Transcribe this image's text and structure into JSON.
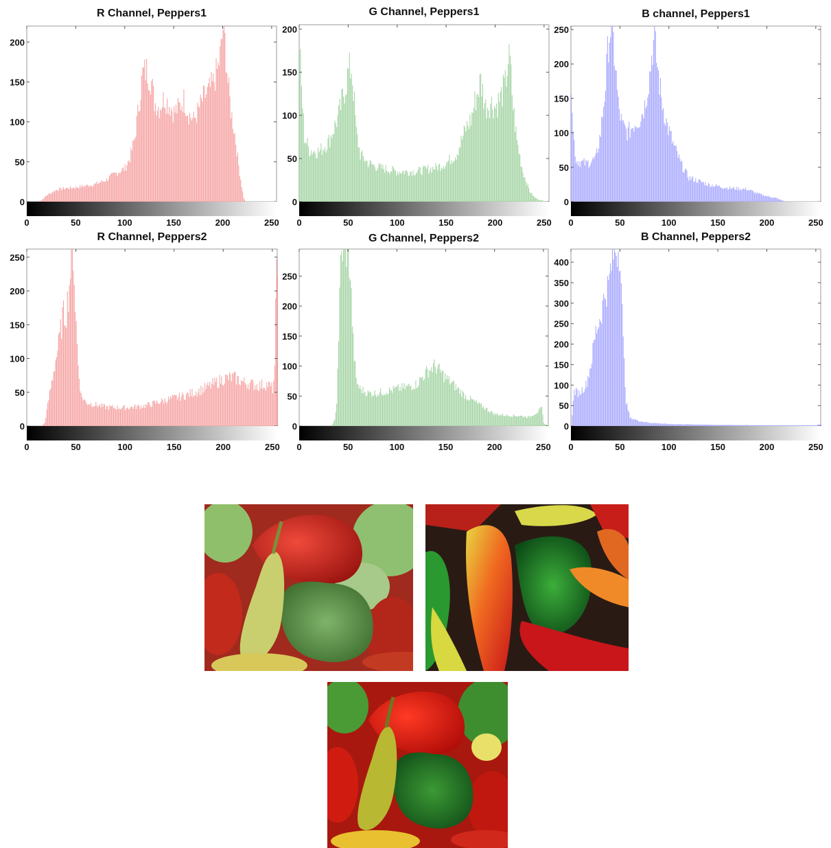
{
  "chart_data": [
    {
      "type": "bar",
      "title": "R Channel, Peppers1",
      "xlabel": "",
      "ylabel": "",
      "xlim": [
        0,
        255
      ],
      "ylim": [
        0,
        220
      ],
      "xticks": [
        0,
        50,
        100,
        150,
        200,
        250
      ],
      "yticks": [
        0,
        50,
        100,
        150,
        200
      ],
      "grid": false,
      "legend": "none",
      "color": "#f6a3a3",
      "profile": [
        [
          0,
          0
        ],
        [
          10,
          0
        ],
        [
          15,
          2
        ],
        [
          20,
          8
        ],
        [
          30,
          15
        ],
        [
          40,
          17
        ],
        [
          50,
          18
        ],
        [
          60,
          20
        ],
        [
          70,
          22
        ],
        [
          80,
          27
        ],
        [
          90,
          35
        ],
        [
          100,
          42
        ],
        [
          105,
          55
        ],
        [
          110,
          80
        ],
        [
          115,
          130
        ],
        [
          118,
          160
        ],
        [
          122,
          165
        ],
        [
          127,
          150
        ],
        [
          130,
          125
        ],
        [
          135,
          118
        ],
        [
          140,
          130
        ],
        [
          145,
          122
        ],
        [
          150,
          112
        ],
        [
          155,
          118
        ],
        [
          160,
          128
        ],
        [
          165,
          110
        ],
        [
          170,
          102
        ],
        [
          175,
          115
        ],
        [
          180,
          130
        ],
        [
          185,
          138
        ],
        [
          190,
          148
        ],
        [
          195,
          168
        ],
        [
          198,
          190
        ],
        [
          200,
          218
        ],
        [
          202,
          200
        ],
        [
          205,
          150
        ],
        [
          208,
          115
        ],
        [
          212,
          85
        ],
        [
          216,
          45
        ],
        [
          219,
          20
        ],
        [
          221,
          5
        ],
        [
          223,
          0
        ],
        [
          255,
          0
        ]
      ],
      "noise": 0.13
    },
    {
      "type": "bar",
      "title": "G Channel, Peppers1",
      "xlabel": "",
      "ylabel": "",
      "xlim": [
        0,
        255
      ],
      "ylim": [
        0,
        205
      ],
      "xticks": [
        0,
        50,
        100,
        150,
        200,
        250
      ],
      "yticks": [
        0,
        50,
        100,
        150,
        200
      ],
      "grid": false,
      "legend": "none",
      "color": "#a4d4a4",
      "profile": [
        [
          0,
          185
        ],
        [
          2,
          130
        ],
        [
          5,
          75
        ],
        [
          10,
          60
        ],
        [
          20,
          58
        ],
        [
          30,
          70
        ],
        [
          40,
          100
        ],
        [
          45,
          125
        ],
        [
          50,
          150
        ],
        [
          53,
          155
        ],
        [
          55,
          130
        ],
        [
          58,
          80
        ],
        [
          62,
          55
        ],
        [
          70,
          45
        ],
        [
          80,
          40
        ],
        [
          100,
          35
        ],
        [
          120,
          35
        ],
        [
          140,
          40
        ],
        [
          150,
          45
        ],
        [
          160,
          55
        ],
        [
          170,
          85
        ],
        [
          175,
          95
        ],
        [
          180,
          120
        ],
        [
          185,
          140
        ],
        [
          190,
          110
        ],
        [
          195,
          115
        ],
        [
          200,
          110
        ],
        [
          205,
          120
        ],
        [
          210,
          135
        ],
        [
          213,
          165
        ],
        [
          215,
          160
        ],
        [
          218,
          110
        ],
        [
          222,
          70
        ],
        [
          228,
          35
        ],
        [
          235,
          12
        ],
        [
          240,
          5
        ],
        [
          245,
          2
        ],
        [
          255,
          0
        ]
      ],
      "noise": 0.15
    },
    {
      "type": "bar",
      "title": "B channel, Peppers1",
      "xlabel": "",
      "ylabel": "",
      "xlim": [
        0,
        255
      ],
      "ylim": [
        0,
        255
      ],
      "xticks": [
        0,
        50,
        100,
        150,
        200,
        250
      ],
      "yticks": [
        0,
        50,
        100,
        150,
        200,
        250
      ],
      "grid": false,
      "legend": "none",
      "color": "#a8a8ff",
      "profile": [
        [
          0,
          180
        ],
        [
          2,
          100
        ],
        [
          5,
          60
        ],
        [
          15,
          55
        ],
        [
          25,
          62
        ],
        [
          30,
          100
        ],
        [
          35,
          170
        ],
        [
          38,
          235
        ],
        [
          40,
          252
        ],
        [
          42,
          245
        ],
        [
          45,
          200
        ],
        [
          48,
          140
        ],
        [
          52,
          110
        ],
        [
          58,
          100
        ],
        [
          65,
          115
        ],
        [
          70,
          120
        ],
        [
          75,
          140
        ],
        [
          80,
          185
        ],
        [
          83,
          225
        ],
        [
          85,
          232
        ],
        [
          88,
          195
        ],
        [
          92,
          150
        ],
        [
          98,
          110
        ],
        [
          105,
          80
        ],
        [
          112,
          55
        ],
        [
          120,
          35
        ],
        [
          140,
          25
        ],
        [
          160,
          20
        ],
        [
          180,
          18
        ],
        [
          190,
          12
        ],
        [
          200,
          8
        ],
        [
          210,
          5
        ],
        [
          215,
          2
        ],
        [
          220,
          0
        ],
        [
          255,
          0
        ]
      ],
      "noise": 0.14
    },
    {
      "type": "bar",
      "title": "R Channel, Peppers2",
      "xlabel": "",
      "ylabel": "",
      "xlim": [
        0,
        255
      ],
      "ylim": [
        0,
        262
      ],
      "xticks": [
        0,
        50,
        100,
        150,
        200,
        250
      ],
      "yticks": [
        0,
        50,
        100,
        150,
        200,
        250
      ],
      "grid": false,
      "legend": "none",
      "color": "#f6a3a3",
      "profile": [
        [
          0,
          0
        ],
        [
          15,
          0
        ],
        [
          18,
          5
        ],
        [
          22,
          40
        ],
        [
          28,
          90
        ],
        [
          32,
          120
        ],
        [
          36,
          160
        ],
        [
          40,
          170
        ],
        [
          43,
          210
        ],
        [
          45,
          255
        ],
        [
          47,
          262
        ],
        [
          49,
          180
        ],
        [
          52,
          90
        ],
        [
          55,
          45
        ],
        [
          60,
          35
        ],
        [
          80,
          28
        ],
        [
          100,
          27
        ],
        [
          120,
          30
        ],
        [
          140,
          38
        ],
        [
          160,
          45
        ],
        [
          180,
          55
        ],
        [
          200,
          70
        ],
        [
          210,
          72
        ],
        [
          220,
          65
        ],
        [
          235,
          60
        ],
        [
          245,
          62
        ],
        [
          250,
          55
        ],
        [
          252,
          80
        ],
        [
          254,
          250
        ],
        [
          255,
          262
        ]
      ],
      "noise": 0.15
    },
    {
      "type": "bar",
      "title": "G Channel, Peppers2",
      "xlabel": "",
      "ylabel": "",
      "xlim": [
        0,
        255
      ],
      "ylim": [
        0,
        295
      ],
      "xticks": [
        0,
        50,
        100,
        150,
        200,
        250
      ],
      "yticks": [
        0,
        50,
        100,
        150,
        200,
        250
      ],
      "grid": false,
      "legend": "none",
      "color": "#a4d4a4",
      "profile": [
        [
          0,
          0
        ],
        [
          33,
          0
        ],
        [
          36,
          10
        ],
        [
          38,
          40
        ],
        [
          40,
          150
        ],
        [
          42,
          270
        ],
        [
          44,
          295
        ],
        [
          50,
          295
        ],
        [
          52,
          250
        ],
        [
          55,
          140
        ],
        [
          58,
          75
        ],
        [
          62,
          62
        ],
        [
          70,
          55
        ],
        [
          80,
          55
        ],
        [
          100,
          62
        ],
        [
          110,
          65
        ],
        [
          120,
          70
        ],
        [
          130,
          90
        ],
        [
          138,
          100
        ],
        [
          142,
          95
        ],
        [
          150,
          80
        ],
        [
          160,
          65
        ],
        [
          170,
          50
        ],
        [
          185,
          35
        ],
        [
          200,
          20
        ],
        [
          210,
          18
        ],
        [
          225,
          17
        ],
        [
          235,
          15
        ],
        [
          240,
          20
        ],
        [
          245,
          25
        ],
        [
          248,
          30
        ],
        [
          250,
          5
        ],
        [
          255,
          0
        ]
      ],
      "noise": 0.13
    },
    {
      "type": "bar",
      "title": "B Channel, Peppers2",
      "xlabel": "",
      "ylabel": "",
      "xlim": [
        0,
        255
      ],
      "ylim": [
        0,
        432
      ],
      "xticks": [
        0,
        50,
        100,
        150,
        200,
        250
      ],
      "yticks": [
        0,
        50,
        100,
        150,
        200,
        250,
        300,
        350,
        400
      ],
      "grid": false,
      "legend": "none",
      "color": "#a8a8ff",
      "profile": [
        [
          0,
          0
        ],
        [
          1,
          30
        ],
        [
          3,
          85
        ],
        [
          8,
          80
        ],
        [
          15,
          100
        ],
        [
          20,
          150
        ],
        [
          25,
          230
        ],
        [
          30,
          270
        ],
        [
          35,
          330
        ],
        [
          38,
          340
        ],
        [
          40,
          380
        ],
        [
          43,
          420
        ],
        [
          45,
          432
        ],
        [
          50,
          432
        ],
        [
          53,
          200
        ],
        [
          56,
          60
        ],
        [
          60,
          20
        ],
        [
          70,
          12
        ],
        [
          80,
          8
        ],
        [
          100,
          5
        ],
        [
          150,
          3
        ],
        [
          200,
          2
        ],
        [
          250,
          2
        ],
        [
          255,
          5
        ]
      ],
      "noise": 0.13
    }
  ]
}
